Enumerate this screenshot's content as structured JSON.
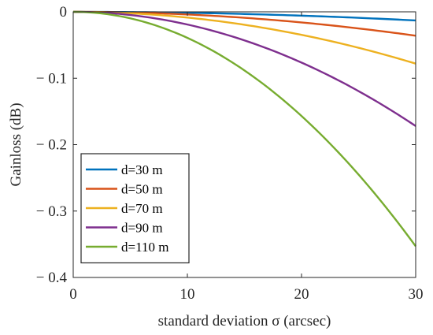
{
  "chart_data": {
    "type": "line",
    "title": "",
    "xlabel": "standard deviation σ (arcsec)",
    "ylabel": "Gainloss (dB)",
    "xlim": [
      0,
      30
    ],
    "ylim": [
      -0.4,
      0
    ],
    "xticks": [
      0,
      10,
      20,
      30
    ],
    "xtick_labels": [
      "0",
      "10",
      "20",
      "30"
    ],
    "yticks": [
      0,
      -0.1,
      -0.2,
      -0.3,
      -0.4
    ],
    "ytick_labels": [
      "0",
      "− 0.1",
      "− 0.2",
      "− 0.3",
      "− 0.4"
    ],
    "grid": false,
    "legend_position": "bottom-left",
    "x": [
      0,
      5,
      10,
      15,
      20,
      25,
      30
    ],
    "series": [
      {
        "name": "d=30 m",
        "color": "#0072BD",
        "values": [
          0,
          -0.0004,
          -0.0015,
          -0.0033,
          -0.0058,
          -0.009,
          -0.013
        ]
      },
      {
        "name": "d=50 m",
        "color": "#D95319",
        "values": [
          0,
          -0.001,
          -0.004,
          -0.009,
          -0.016,
          -0.025,
          -0.036
        ]
      },
      {
        "name": "d=70 m",
        "color": "#EDB120",
        "values": [
          0,
          -0.0022,
          -0.0087,
          -0.0196,
          -0.0348,
          -0.0544,
          -0.078
        ]
      },
      {
        "name": "d=90 m",
        "color": "#7E2F8E",
        "values": [
          0,
          -0.0048,
          -0.0191,
          -0.043,
          -0.0764,
          -0.1194,
          -0.172
        ]
      },
      {
        "name": "d=110 m",
        "color": "#77AC30",
        "values": [
          0,
          -0.0098,
          -0.0392,
          -0.0882,
          -0.1568,
          -0.245,
          -0.353
        ]
      }
    ]
  }
}
